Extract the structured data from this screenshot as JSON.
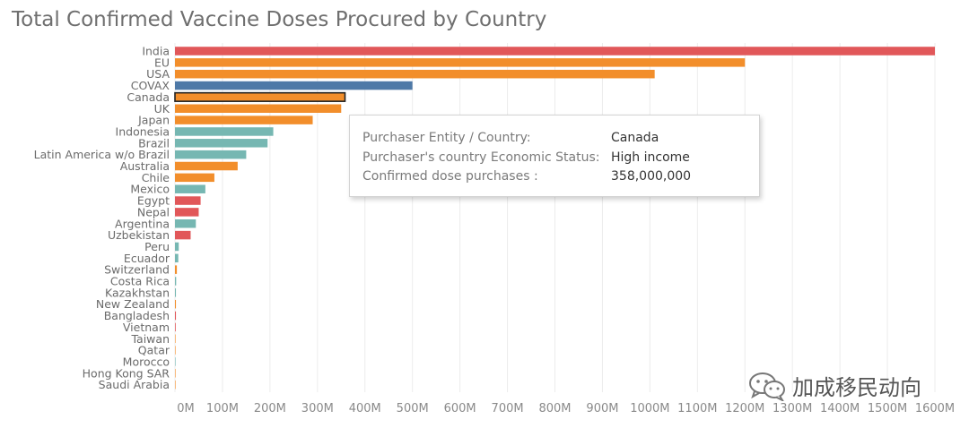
{
  "chart_data": {
    "type": "bar",
    "orientation": "horizontal",
    "title": "Total Confirmed Vaccine Doses Procured by Country",
    "xlabel": "",
    "ylabel": "",
    "xlim": [
      0,
      1600000000
    ],
    "grid": true,
    "x_ticks": [
      "0M",
      "100M",
      "200M",
      "300M",
      "400M",
      "500M",
      "600M",
      "700M",
      "800M",
      "900M",
      "1000M",
      "1100M",
      "1200M",
      "1300M",
      "1400M",
      "1500M",
      "1600M"
    ],
    "categories": [
      "India",
      "EU",
      "USA",
      "COVAX",
      "Canada",
      "UK",
      "Japan",
      "Indonesia",
      "Brazil",
      "Latin America w/o Brazil",
      "Australia",
      "Chile",
      "Mexico",
      "Egypt",
      "Nepal",
      "Argentina",
      "Uzbekistan",
      "Peru",
      "Ecuador",
      "Switzerland",
      "Costa Rica",
      "Kazakhstan",
      "New Zealand",
      "Bangladesh",
      "Vietnam",
      "Taiwan",
      "Qatar",
      "Morocco",
      "Hong Kong SAR",
      "Saudi Arabia"
    ],
    "values": [
      1600000000,
      1200000000,
      1010000000,
      500000000,
      358000000,
      350000000,
      290000000,
      207000000,
      195000000,
      150000000,
      132000000,
      83000000,
      64000000,
      54000000,
      50000000,
      44000000,
      33000000,
      8000000,
      7000000,
      4000000,
      2500000,
      2000000,
      2000000,
      2000000,
      1500000,
      1000000,
      1000000,
      1000000,
      800000,
      500000
    ],
    "colors": [
      "#e15759",
      "#f28e2b",
      "#f28e2b",
      "#4e79a7",
      "#f28e2b",
      "#f28e2b",
      "#f28e2b",
      "#76b7b2",
      "#76b7b2",
      "#76b7b2",
      "#f28e2b",
      "#f28e2b",
      "#76b7b2",
      "#e15759",
      "#e15759",
      "#76b7b2",
      "#e15759",
      "#76b7b2",
      "#76b7b2",
      "#f28e2b",
      "#76b7b2",
      "#76b7b2",
      "#f28e2b",
      "#e15759",
      "#e15759",
      "#f28e2b",
      "#f28e2b",
      "#76b7b2",
      "#f28e2b",
      "#f28e2b"
    ],
    "highlighted": "Canada"
  },
  "tooltip": {
    "rows": [
      {
        "label": "Purchaser Entity / Country:",
        "value": "Canada"
      },
      {
        "label": "Purchaser's country Economic  Status:",
        "value": "High income"
      },
      {
        "label": "Confirmed dose purchases :",
        "value": "358,000,000"
      }
    ]
  },
  "watermark": {
    "text": "加成移民动向",
    "icon": "wechat-icon"
  }
}
